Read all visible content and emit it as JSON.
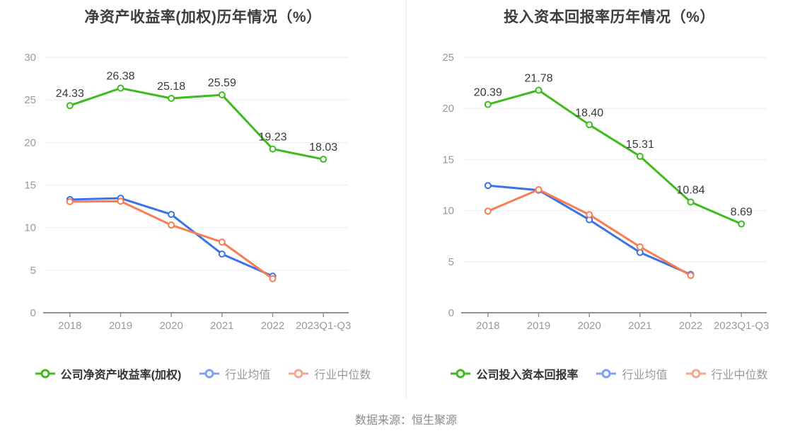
{
  "source_note": "数据来源：恒生聚源",
  "colors": {
    "gridline": "#e9edf4",
    "axis": "#929292",
    "tick_label": "#999999",
    "value_label": "#3a3a3a",
    "title": "#3d3d3d",
    "source_text": "#8a8a8a",
    "panel_divider": "#ececec",
    "company_green": "#3ebb1f",
    "industry_mean_blue": "#3a72ec",
    "industry_median_orange": "#f87d52"
  },
  "chart_data": [
    {
      "type": "line",
      "title": "净资产收益率(加权)历年情况（%）",
      "categories": [
        "2018",
        "2019",
        "2020",
        "2021",
        "2022",
        "2023Q1-Q3"
      ],
      "xlabel": "",
      "ylabel": "",
      "ylim": [
        0,
        30
      ],
      "ytick_step": 5,
      "grid": true,
      "legend_position": "bottom",
      "series": [
        {
          "name": "公司净资产收益率(加权)",
          "color": "#3ebb1f",
          "legend_color": "#3ebb1f",
          "show_point_labels": true,
          "values": [
            24.33,
            26.38,
            25.18,
            25.59,
            19.23,
            18.03
          ]
        },
        {
          "name": "行业均值",
          "color": "#3a72ec",
          "legend_color": "#7aa2f6",
          "show_point_labels": false,
          "values": [
            13.3,
            13.45,
            11.55,
            6.9,
            4.3,
            null
          ]
        },
        {
          "name": "行业中位数",
          "color": "#f87d52",
          "legend_color": "#f9a78b",
          "show_point_labels": false,
          "values": [
            13.05,
            13.1,
            10.3,
            8.3,
            4.0,
            null
          ]
        }
      ]
    },
    {
      "type": "line",
      "title": "投入资本回报率历年情况（%）",
      "categories": [
        "2018",
        "2019",
        "2020",
        "2021",
        "2022",
        "2023Q1-Q3"
      ],
      "xlabel": "",
      "ylabel": "",
      "ylim": [
        0,
        25
      ],
      "ytick_step": 5,
      "grid": true,
      "legend_position": "bottom",
      "series": [
        {
          "name": "公司投入资本回报率",
          "color": "#3ebb1f",
          "legend_color": "#3ebb1f",
          "show_point_labels": true,
          "values": [
            20.39,
            21.78,
            18.4,
            15.31,
            10.84,
            8.69
          ]
        },
        {
          "name": "行业均值",
          "color": "#3a72ec",
          "legend_color": "#7aa2f6",
          "show_point_labels": false,
          "values": [
            12.45,
            12.0,
            9.1,
            5.9,
            3.75,
            null
          ]
        },
        {
          "name": "行业中位数",
          "color": "#f87d52",
          "legend_color": "#f9a78b",
          "show_point_labels": false,
          "values": [
            9.95,
            12.05,
            9.6,
            6.45,
            3.65,
            null
          ]
        }
      ]
    }
  ]
}
